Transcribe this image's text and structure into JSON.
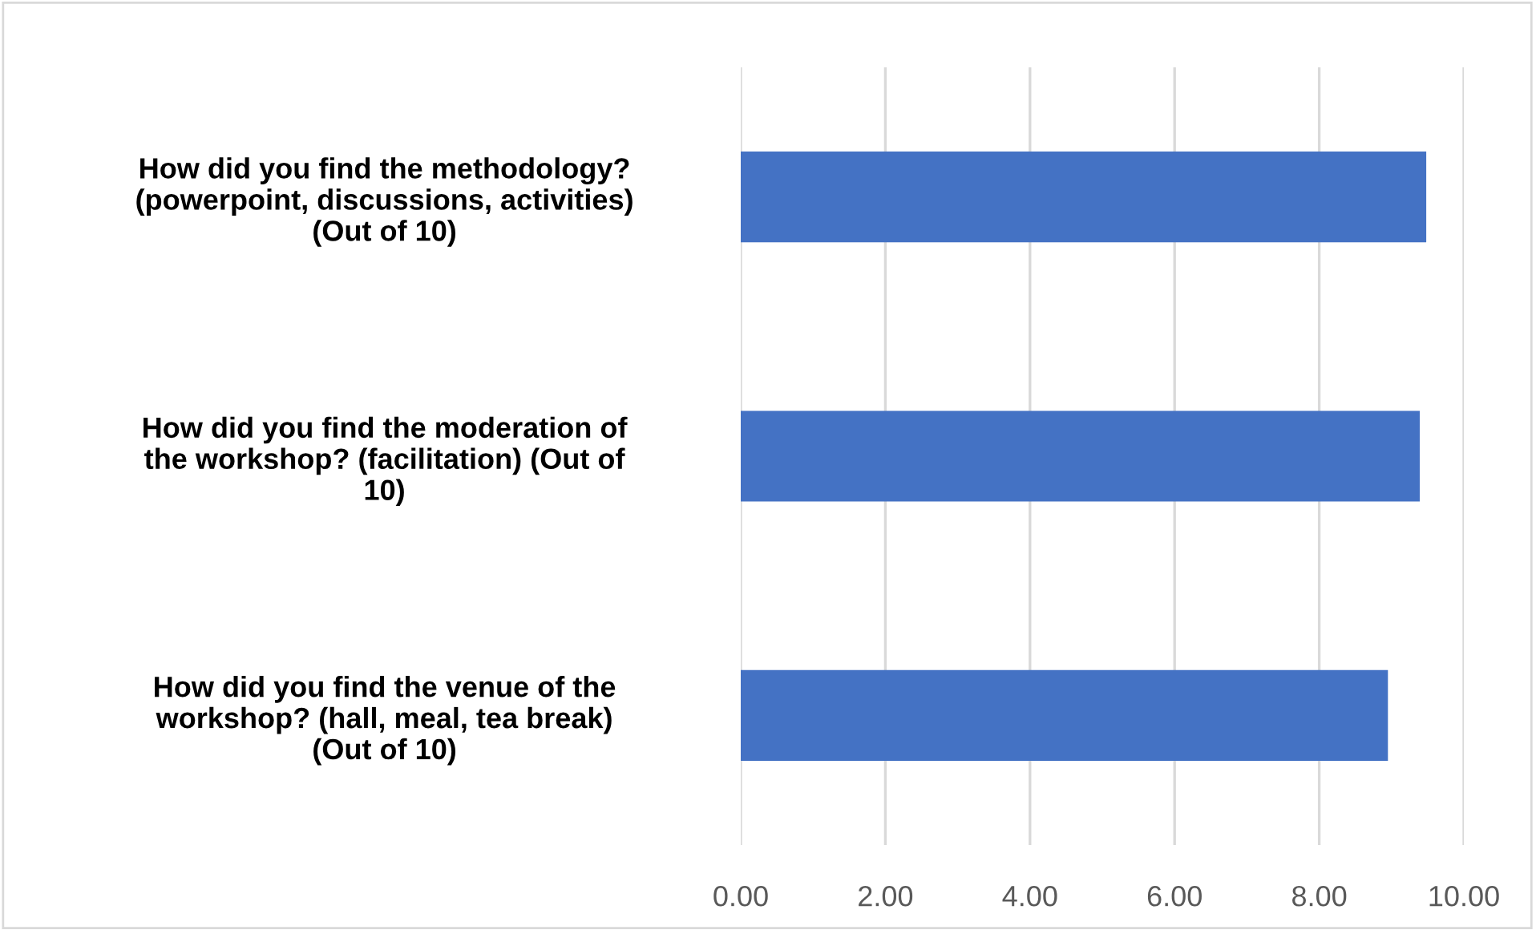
{
  "chart_data": {
    "type": "bar",
    "orientation": "horizontal",
    "categories": [
      "How did you find the methodology?\n(powerpoint, discussions, activities)\n(Out of 10)",
      "How did you find the moderation of\nthe workshop? (facilitation) (Out of\n10)",
      "How did you find the venue of the\nworkshop? (hall, meal, tea break)\n(Out of 10)"
    ],
    "values": [
      9.48,
      9.39,
      8.95
    ],
    "color": "#4472c4",
    "xlim": [
      0,
      10
    ],
    "xticks": [
      {
        "value": 0,
        "label": "0.00"
      },
      {
        "value": 2,
        "label": "2.00"
      },
      {
        "value": 4,
        "label": "4.00"
      },
      {
        "value": 6,
        "label": "6.00"
      },
      {
        "value": 8,
        "label": "8.00"
      },
      {
        "value": 10,
        "label": "10.00"
      }
    ],
    "grid": "x",
    "legend": false
  }
}
